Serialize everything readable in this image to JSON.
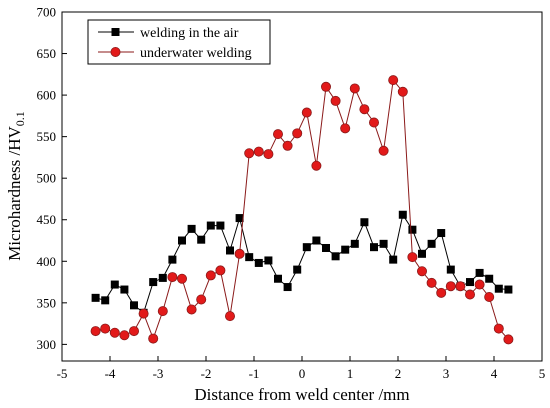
{
  "chart_data": {
    "type": "line",
    "title": "",
    "xlabel": "Distance from weld center /mm",
    "ylabel_main": "Microhardness /HV",
    "ylabel_sub": "0.1",
    "xlim": [
      -5,
      5
    ],
    "ylim": [
      280,
      700
    ],
    "x_ticks": [
      -5,
      -4,
      -3,
      -2,
      -1,
      0,
      1,
      2,
      3,
      4,
      5
    ],
    "y_ticks": [
      300,
      350,
      400,
      450,
      500,
      550,
      600,
      650,
      700
    ],
    "legend_position": "top-left",
    "series": [
      {
        "name": "welding in the air",
        "marker": "square",
        "color": "#000000",
        "marker_fill": "#000000",
        "x": [
          -4.3,
          -4.1,
          -3.9,
          -3.7,
          -3.5,
          -3.3,
          -3.1,
          -2.9,
          -2.7,
          -2.5,
          -2.3,
          -2.1,
          -1.9,
          -1.7,
          -1.5,
          -1.3,
          -1.1,
          -0.9,
          -0.7,
          -0.5,
          -0.3,
          -0.1,
          0.1,
          0.3,
          0.5,
          0.7,
          0.9,
          1.1,
          1.3,
          1.5,
          1.7,
          1.9,
          2.1,
          2.3,
          2.5,
          2.7,
          2.9,
          3.1,
          3.3,
          3.5,
          3.7,
          3.9,
          4.1,
          4.3
        ],
        "y": [
          356,
          353,
          372,
          366,
          347,
          338,
          375,
          380,
          402,
          425,
          439,
          426,
          443,
          443,
          413,
          452,
          405,
          398,
          401,
          379,
          369,
          390,
          417,
          425,
          416,
          406,
          414,
          421,
          447,
          417,
          421,
          402,
          456,
          438,
          409,
          421,
          434,
          390,
          370,
          375,
          386,
          379,
          367,
          366
        ]
      },
      {
        "name": "underwater welding",
        "marker": "circle",
        "color": "#8b1a1a",
        "marker_fill": "#e21a1a",
        "x": [
          -4.3,
          -4.1,
          -3.9,
          -3.7,
          -3.5,
          -3.3,
          -3.1,
          -2.9,
          -2.7,
          -2.5,
          -2.3,
          -2.1,
          -1.9,
          -1.7,
          -1.5,
          -1.3,
          -1.1,
          -0.9,
          -0.7,
          -0.5,
          -0.3,
          -0.1,
          0.1,
          0.3,
          0.5,
          0.7,
          0.9,
          1.1,
          1.3,
          1.5,
          1.7,
          1.9,
          2.1,
          2.3,
          2.5,
          2.7,
          2.9,
          3.1,
          3.3,
          3.5,
          3.7,
          3.9,
          4.1,
          4.3
        ],
        "y": [
          316,
          319,
          314,
          311,
          316,
          337,
          307,
          340,
          381,
          379,
          342,
          354,
          383,
          389,
          334,
          409,
          530,
          532,
          529,
          553,
          539,
          554,
          579,
          515,
          610,
          593,
          560,
          608,
          583,
          567,
          533,
          618,
          604,
          405,
          388,
          374,
          362,
          370,
          370,
          360,
          372,
          357,
          319,
          306
        ]
      }
    ]
  }
}
